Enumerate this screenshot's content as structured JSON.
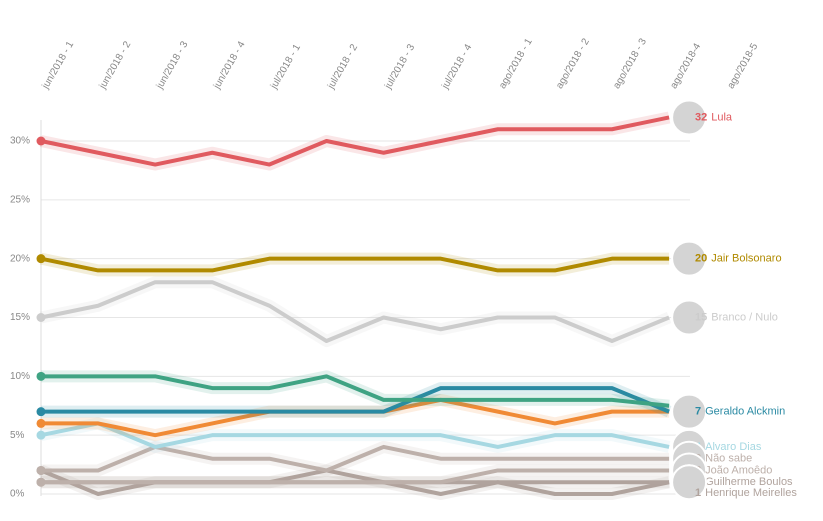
{
  "chart_data": {
    "type": "line",
    "categories": [
      "jun/2018 - 1",
      "jun/2018 - 2",
      "jun/2018 - 3",
      "jun/2018 - 4",
      "jul/2018 - 1",
      "jul/2018 - 2",
      "jul/2018 - 3",
      "jul/2018 - 4",
      "ago/2018 - 1",
      "ago/2018 - 2",
      "ago/2018 - 3",
      "ago/2018-4",
      "ago/2018-5"
    ],
    "ylim": [
      0,
      31.5
    ],
    "yticks": [
      {
        "value": 0,
        "label": "0%"
      },
      {
        "value": 5,
        "label": "5%"
      },
      {
        "value": 10,
        "label": "10%"
      },
      {
        "value": 15,
        "label": "15%"
      },
      {
        "value": 20,
        "label": "20%"
      },
      {
        "value": 25,
        "label": "25%"
      },
      {
        "value": 30,
        "label": "30%"
      }
    ],
    "grid": true,
    "series": [
      {
        "name": "Lula",
        "color": "#e05a5f",
        "values": [
          30,
          29,
          28,
          29,
          28,
          30,
          29,
          30,
          31,
          31,
          31,
          32,
          null
        ]
      },
      {
        "name": "Jair Bolsonaro",
        "color": "#b08a00",
        "values": [
          20,
          19,
          19,
          19,
          20,
          20,
          20,
          20,
          19,
          19,
          20,
          20,
          null
        ]
      },
      {
        "name": "Branco / Nulo",
        "color": "#cccccc",
        "values": [
          15,
          16,
          18,
          18,
          16,
          13,
          15,
          14,
          15,
          15,
          13,
          15,
          null
        ]
      },
      {
        "color": "#3fa383",
        "values": [
          10,
          10,
          10,
          9,
          9,
          10,
          8,
          8,
          8,
          8,
          8,
          7.5,
          null
        ]
      },
      {
        "name": "Geraldo Alckmin",
        "color": "#2a8aa3",
        "values": [
          7,
          7,
          7,
          7,
          7,
          7,
          7,
          9,
          9,
          9,
          9,
          7,
          null
        ]
      },
      {
        "color": "#f08a35",
        "values": [
          6,
          6,
          5,
          6,
          7,
          7,
          7,
          8,
          7,
          6,
          7,
          7,
          null
        ]
      },
      {
        "name": "Alvaro Dias",
        "color": "#a6d8e2",
        "values": [
          5,
          6,
          4,
          5,
          5,
          5,
          5,
          5,
          4,
          5,
          5,
          4,
          null
        ]
      },
      {
        "name": "Não sabe",
        "color": "#bdb0aa",
        "values": [
          2,
          2,
          4,
          3,
          3,
          2,
          4,
          3,
          3,
          3,
          3,
          3,
          null
        ]
      },
      {
        "name": "João Amoêdo",
        "color": "#bdb0aa",
        "values": [
          1,
          1,
          1,
          1,
          1,
          1,
          1,
          1,
          2,
          2,
          2,
          2,
          null
        ]
      },
      {
        "name": "Henrique Meirelles",
        "color": "#b0a39d",
        "values": [
          1,
          1,
          1,
          1,
          1,
          1,
          1,
          1,
          1,
          1,
          1,
          1,
          null
        ]
      },
      {
        "name": "Guilherme Boulos",
        "color": "#b0a39d",
        "values": [
          2,
          0,
          1,
          1,
          1,
          2,
          1,
          0,
          1,
          0,
          0,
          1,
          null
        ]
      }
    ]
  }
}
